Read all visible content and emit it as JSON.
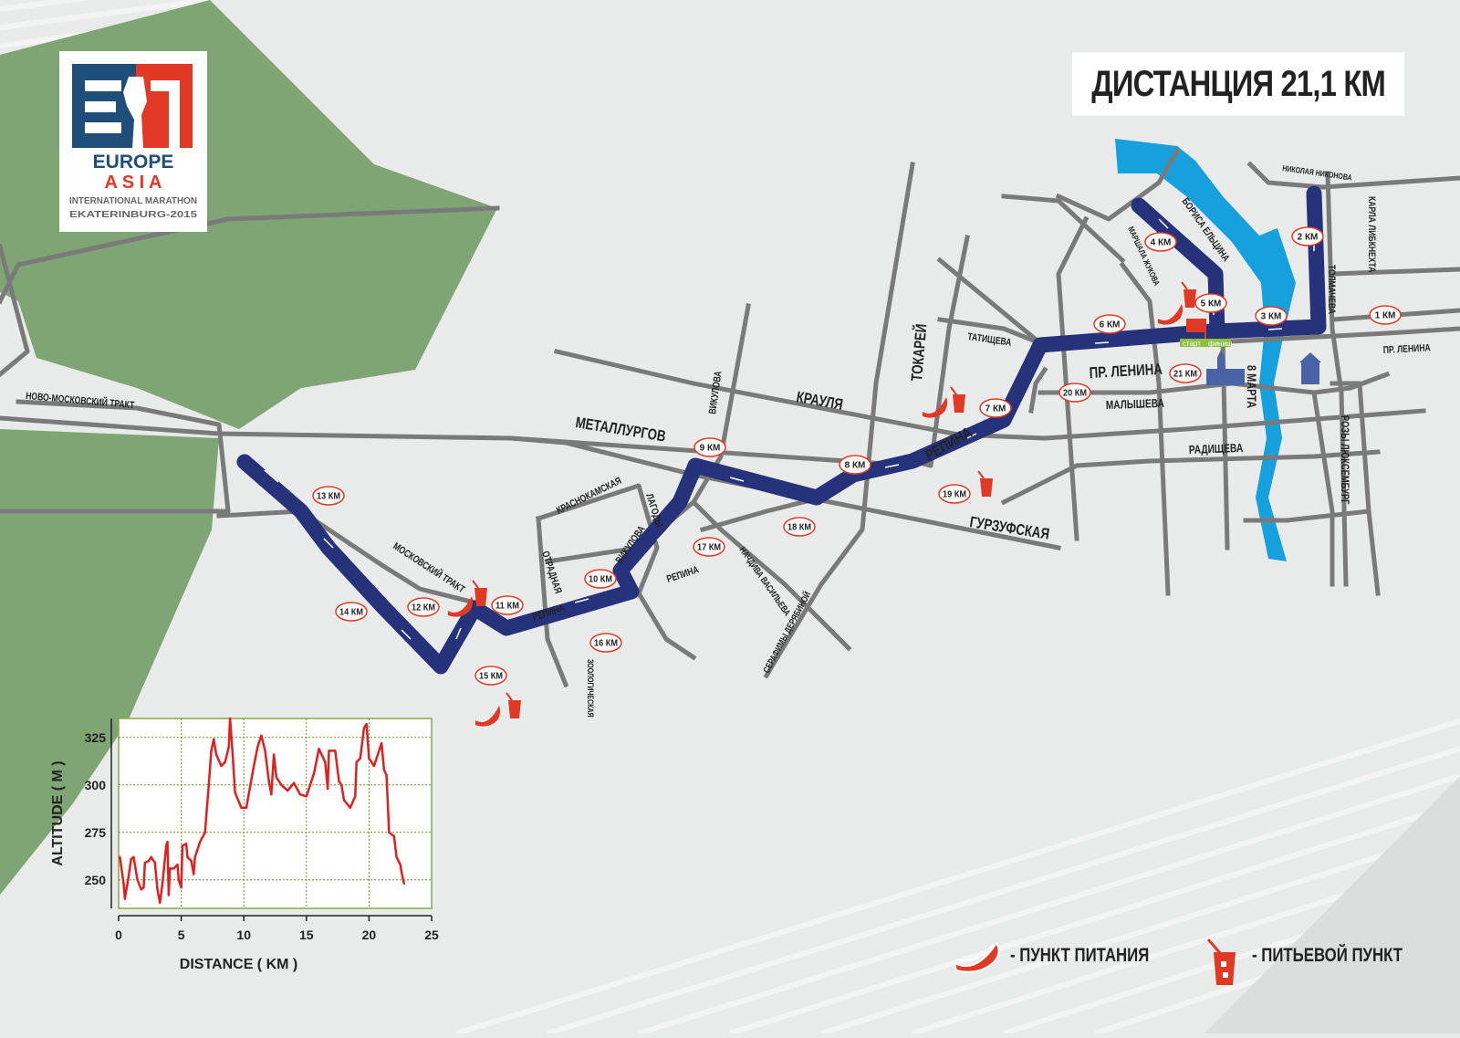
{
  "title": "ДИСТАНЦИЯ 21,1 КМ",
  "logo": {
    "letters": "EA",
    "line1": "EUROPE",
    "line2": "A S I A",
    "line3": "INTERNATIONAL MARATHON",
    "line4": "EKATERINBURG-2015",
    "colors": {
      "blue": "#1f4e7a",
      "red": "#e03a26"
    }
  },
  "colors": {
    "route": "#26337a",
    "road": "#7a7a7a",
    "park": "#7fa574",
    "river": "#16a0de",
    "marker_red": "#e03a26",
    "background": "#e9eaea"
  },
  "streets": {
    "novo_moskovsky": "НОВО-МОСКОВСКИЙ ТРАКТ",
    "moskovsky": "МОСКОВСКИЙ ТРАКТ",
    "metallurgov": "МЕТАЛЛУРГОВ",
    "kraulya": "КРАУЛЯ",
    "vikulova_n": "ВИКУЛОВА",
    "vikulova_s": "ВИКУЛОВА",
    "krasnokamskaya": "КРАСНОКАМСКАЯ",
    "lagody": "ЛАГОДЫ",
    "otradnaya": "ОТРАДНАЯ",
    "repina_w": "РЕПИНА",
    "repina_m": "РЕПИНА",
    "repina_e": "РЕПИНА",
    "zoologicheskaya": "ЗООЛОГИЧЕСКАЯ",
    "nachdiva": "НАЧДИВА ВАСИЛЬЕВА",
    "serafimy": "СЕРАФИМЫ ДЕРЯБИНОЙ",
    "tokarey": "ТОКАРЕЙ",
    "tatishcheva": "ТАТИЩЕВА",
    "gurzufskaya": "ГУРЗУФСКАЯ",
    "lenina": "ПР. ЛЕНИНА",
    "lenina_e": "ПР. ЛЕНИНА",
    "malysheva": "МАЛЫШЕВА",
    "radishcheva": "РАДИЩЕВА",
    "vosmogo_marta": "8 МАРТА",
    "rozy": "РОЗЫ ЛЮКСЕМБУРГ",
    "marshala": "МАРШАЛА ЖУКОВА",
    "borisa": "БОРИСА ЕЛЬЦИНА",
    "nikolaya": "НИКОЛАЯ НИКОНОВА",
    "karla": "КАРЛА ЛИБКНЕХТА",
    "tolmacheva": "ТОЛМАЧЕВА"
  },
  "start_finish": {
    "start": "старт",
    "finish": "финиш"
  },
  "km_markers": [
    "1 КМ",
    "2 КМ",
    "3 КМ",
    "4 КМ",
    "5 КМ",
    "6 КМ",
    "7 КМ",
    "8 КМ",
    "9 КМ",
    "10 КМ",
    "11 КМ",
    "12 КМ",
    "13 КМ",
    "14 КМ",
    "15 КМ",
    "16 КМ",
    "17 КМ",
    "18 КМ",
    "19 КМ",
    "20 КМ",
    "21 КМ"
  ],
  "legend": {
    "food": {
      "icon": "banana-icon",
      "label": "- ПУНКТ ПИТАНИЯ"
    },
    "drink": {
      "icon": "drink-cup-icon",
      "label": "- ПИТЬЕВОЙ ПУНКТ"
    }
  },
  "chart_data": {
    "type": "line",
    "xlabel": "DISTANCE ( KM )",
    "ylabel": "ALTITUDE ( M )",
    "xlim": [
      0,
      25
    ],
    "ylim": [
      235,
      335
    ],
    "xticks": [
      "0",
      "5",
      "10",
      "15",
      "20",
      "25"
    ],
    "yticks": [
      "250",
      "275",
      "300",
      "325"
    ],
    "grid": true,
    "color": "#e02020",
    "x": [
      0.1,
      0.4,
      0.5,
      0.8,
      1.0,
      1.2,
      1.5,
      1.8,
      2.0,
      2.1,
      2.4,
      2.6,
      2.9,
      3.1,
      3.3,
      3.5,
      3.8,
      3.9,
      4.0,
      4.1,
      4.4,
      4.7,
      4.8,
      5.0,
      5.1,
      5.4,
      5.5,
      5.8,
      6.0,
      6.1,
      6.5,
      6.9,
      7.2,
      7.4,
      7.6,
      7.8,
      8.2,
      8.5,
      8.8,
      8.9,
      9.1,
      9.3,
      9.8,
      10.2,
      10.8,
      11.1,
      11.4,
      11.7,
      12.0,
      12.2,
      12.4,
      12.6,
      13.0,
      13.5,
      14.0,
      14.5,
      15.0,
      15.6,
      16.0,
      16.5,
      16.7,
      16.8,
      17.3,
      17.6,
      17.8,
      18.0,
      18.5,
      18.9,
      19.0,
      19.3,
      19.6,
      19.8,
      20.0,
      20.4,
      20.8,
      21.0,
      21.2,
      21.4,
      21.6,
      22.0,
      22.2,
      22.5,
      22.6,
      22.8
    ],
    "y": [
      262,
      248,
      240,
      252,
      261,
      262,
      250,
      245,
      246,
      259,
      260,
      262,
      259,
      245,
      238,
      248,
      268,
      270,
      242,
      256,
      256,
      258,
      250,
      246,
      268,
      269,
      262,
      260,
      253,
      262,
      270,
      275,
      300,
      318,
      324,
      316,
      310,
      312,
      320,
      335,
      317,
      296,
      288,
      288,
      310,
      320,
      326,
      318,
      302,
      295,
      316,
      304,
      300,
      297,
      301,
      295,
      294,
      306,
      319,
      312,
      298,
      318,
      318,
      302,
      300,
      292,
      288,
      294,
      312,
      314,
      330,
      332,
      314,
      310,
      318,
      322,
      308,
      305,
      275,
      273,
      262,
      258,
      254,
      248
    ]
  }
}
